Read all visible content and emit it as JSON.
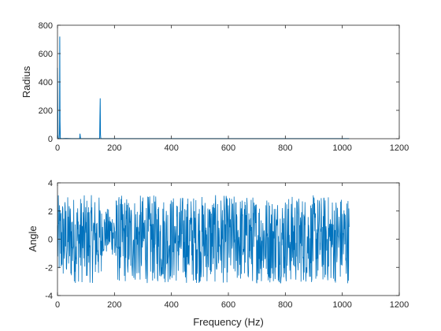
{
  "chart_data": [
    {
      "type": "line",
      "title": "",
      "xlabel": "",
      "ylabel": "Radius",
      "xlim": [
        0,
        1200
      ],
      "ylim": [
        0,
        800
      ],
      "xticks": [
        "0",
        "200",
        "400",
        "600",
        "800",
        "1000",
        "1200"
      ],
      "yticks": [
        "0",
        "200",
        "400",
        "600",
        "800"
      ],
      "grid": false,
      "color": "#0072BD",
      "series": [
        {
          "x": [
            0,
            2,
            4,
            6,
            7,
            8,
            9,
            10,
            12,
            14,
            30,
            50,
            78,
            79,
            80,
            81,
            82,
            100,
            120,
            145,
            148,
            149,
            150,
            151,
            152,
            155,
            200,
            300,
            400,
            500,
            600,
            700,
            800,
            900,
            1000,
            1024
          ],
          "values": [
            500,
            3,
            2,
            4,
            40,
            720,
            120,
            3,
            2,
            1,
            2,
            1,
            1,
            35,
            18,
            2,
            1,
            1,
            1,
            1,
            2,
            160,
            285,
            30,
            2,
            1,
            1,
            1,
            1,
            1,
            1,
            1,
            1,
            1,
            1,
            1
          ]
        }
      ]
    },
    {
      "type": "line",
      "title": "",
      "xlabel": "Frequency (Hz)",
      "ylabel": "Angle",
      "xlim": [
        0,
        1200
      ],
      "ylim": [
        -4,
        4
      ],
      "xticks": [
        "0",
        "200",
        "400",
        "600",
        "800",
        "1000",
        "1200"
      ],
      "yticks": [
        "-4",
        "-2",
        "0",
        "2",
        "4"
      ],
      "grid": false,
      "color": "#0072BD",
      "series": [
        {
          "x_start": 0,
          "x_end": 1024,
          "n_points": 1025,
          "range": [
            -3.14,
            3.14
          ],
          "calm_interval": [
            155,
            200
          ],
          "calm_range": [
            -1.2,
            2.2
          ]
        }
      ]
    }
  ]
}
